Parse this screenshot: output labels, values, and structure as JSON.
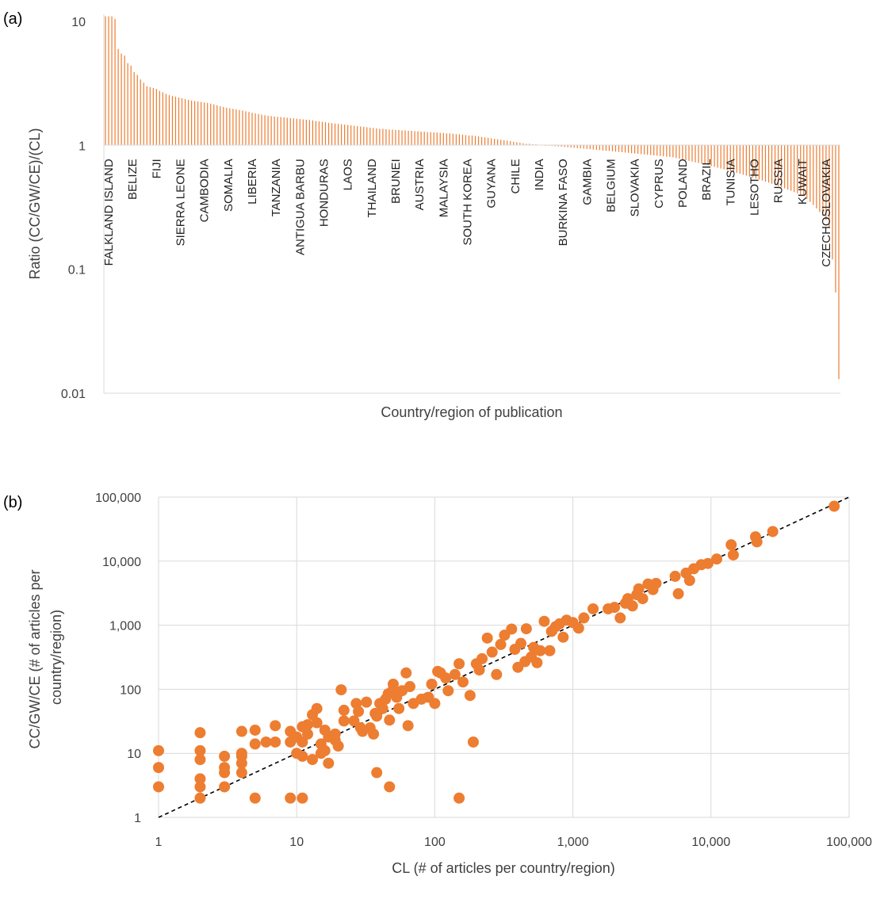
{
  "chart_data": [
    {
      "panel_label": "(a)",
      "type": "bar",
      "title": "",
      "xlabel": "Country/region of publication",
      "ylabel": "Ratio (CC/GW/CE)/(CL)",
      "yscale": "log",
      "ylim": [
        0.01,
        10
      ],
      "baseline": 1,
      "yticks": [
        "0.01",
        "0.1",
        "1",
        "10"
      ],
      "grid": false,
      "bar_color": "#ED7D31",
      "tick_categories": [
        "FALKLAND ISLAND",
        "BELIZE",
        "FIJI",
        "SIERRA LEONE",
        "CAMBODIA",
        "SOMALIA",
        "LIBERIA",
        "TANZANIA",
        "ANTIGUA BARBU",
        "HONDURAS",
        "LAOS",
        "THAILAND",
        "BRUNEI",
        "AUSTRIA",
        "MALAYSIA",
        "SOUTH KOREA",
        "GUYANA",
        "CHILE",
        "INDIA",
        "BURKINA FASO",
        "GAMBIA",
        "BELGIUM",
        "SLOVAKIA",
        "CYPRUS",
        "POLAND",
        "BRAZIL",
        "TUNISIA",
        "LESOTHO",
        "RUSSIA",
        "KUWAIT",
        "CZECHOSLOVAKIA"
      ],
      "values": [
        11,
        11,
        11,
        10.5,
        6,
        5.5,
        5.3,
        4.6,
        4.4,
        3.9,
        3.7,
        3.4,
        3.2,
        3.0,
        2.95,
        2.9,
        2.85,
        2.75,
        2.68,
        2.6,
        2.54,
        2.5,
        2.47,
        2.43,
        2.4,
        2.36,
        2.33,
        2.3,
        2.28,
        2.26,
        2.24,
        2.22,
        2.2,
        2.17,
        2.14,
        2.1,
        2.07,
        2.04,
        2.01,
        1.99,
        1.97,
        1.95,
        1.93,
        1.91,
        1.88,
        1.86,
        1.83,
        1.81,
        1.79,
        1.77,
        1.75,
        1.73,
        1.72,
        1.71,
        1.7,
        1.69,
        1.68,
        1.67,
        1.66,
        1.65,
        1.64,
        1.63,
        1.62,
        1.61,
        1.6,
        1.59,
        1.57,
        1.56,
        1.55,
        1.54,
        1.52,
        1.51,
        1.5,
        1.49,
        1.48,
        1.47,
        1.46,
        1.45,
        1.44,
        1.43,
        1.42,
        1.41,
        1.4,
        1.39,
        1.38,
        1.37,
        1.36,
        1.36,
        1.35,
        1.34,
        1.34,
        1.33,
        1.33,
        1.32,
        1.32,
        1.31,
        1.31,
        1.3,
        1.3,
        1.29,
        1.29,
        1.28,
        1.28,
        1.27,
        1.27,
        1.26,
        1.26,
        1.25,
        1.25,
        1.24,
        1.23,
        1.23,
        1.22,
        1.21,
        1.2,
        1.2,
        1.19,
        1.18,
        1.17,
        1.16,
        1.15,
        1.14,
        1.13,
        1.12,
        1.11,
        1.1,
        1.09,
        1.08,
        1.07,
        1.06,
        1.05,
        1.04,
        1.03,
        1.03,
        1.02,
        1.02,
        1.01,
        1.01,
        1.0,
        0.995,
        0.99,
        0.985,
        0.98,
        0.975,
        0.97,
        0.965,
        0.96,
        0.955,
        0.95,
        0.945,
        0.94,
        0.935,
        0.93,
        0.925,
        0.92,
        0.915,
        0.91,
        0.905,
        0.9,
        0.895,
        0.89,
        0.885,
        0.88,
        0.875,
        0.87,
        0.865,
        0.86,
        0.855,
        0.85,
        0.845,
        0.84,
        0.835,
        0.83,
        0.825,
        0.82,
        0.815,
        0.81,
        0.805,
        0.8,
        0.79,
        0.78,
        0.77,
        0.76,
        0.75,
        0.74,
        0.73,
        0.72,
        0.71,
        0.7,
        0.69,
        0.68,
        0.67,
        0.66,
        0.65,
        0.64,
        0.63,
        0.62,
        0.61,
        0.6,
        0.59,
        0.58,
        0.57,
        0.56,
        0.55,
        0.54,
        0.53,
        0.52,
        0.51,
        0.5,
        0.49,
        0.48,
        0.47,
        0.46,
        0.45,
        0.44,
        0.43,
        0.42,
        0.41,
        0.4,
        0.39,
        0.37,
        0.35,
        0.33,
        0.31,
        0.29,
        0.27,
        0.25,
        0.22,
        0.12,
        0.065,
        0.013
      ]
    },
    {
      "panel_label": "(b)",
      "type": "scatter",
      "title": "",
      "xlabel": "CL (# of articles per country/region)",
      "ylabel": "CC/GW/CE (# of articles per country/region)",
      "xscale": "log",
      "yscale": "log",
      "xlim": [
        1,
        100000
      ],
      "ylim": [
        1,
        100000
      ],
      "xticks": [
        "1",
        "10",
        "100",
        "1,000",
        "10,000",
        "100,000"
      ],
      "yticks": [
        "1",
        "10",
        "100",
        "1,000",
        "10,000",
        "100,000"
      ],
      "grid": true,
      "point_color": "#ED7D31",
      "reference_line": "y = x (dashed)",
      "points": [
        [
          1,
          11
        ],
        [
          1,
          6
        ],
        [
          1,
          3
        ],
        [
          2,
          21
        ],
        [
          2,
          11
        ],
        [
          2,
          8
        ],
        [
          2,
          4
        ],
        [
          2,
          3
        ],
        [
          2,
          2
        ],
        [
          3,
          9
        ],
        [
          3,
          6
        ],
        [
          3,
          5
        ],
        [
          3,
          3
        ],
        [
          4,
          22
        ],
        [
          4,
          10
        ],
        [
          4,
          9
        ],
        [
          4,
          7
        ],
        [
          4,
          5
        ],
        [
          5,
          23
        ],
        [
          5,
          14
        ],
        [
          5,
          2
        ],
        [
          6,
          15
        ],
        [
          7,
          27
        ],
        [
          7,
          15
        ],
        [
          9,
          22
        ],
        [
          9,
          15
        ],
        [
          9,
          2
        ],
        [
          10,
          18
        ],
        [
          10,
          10
        ],
        [
          11,
          26
        ],
        [
          11,
          15
        ],
        [
          11,
          9
        ],
        [
          11,
          2
        ],
        [
          12,
          28
        ],
        [
          12,
          20
        ],
        [
          13,
          40
        ],
        [
          13,
          8
        ],
        [
          14,
          50
        ],
        [
          14,
          30
        ],
        [
          15,
          14
        ],
        [
          15,
          10
        ],
        [
          16,
          23
        ],
        [
          16,
          11
        ],
        [
          17,
          18
        ],
        [
          17,
          7
        ],
        [
          19,
          20
        ],
        [
          19,
          16
        ],
        [
          20,
          13
        ],
        [
          21,
          98
        ],
        [
          22,
          47
        ],
        [
          22,
          32
        ],
        [
          26,
          32
        ],
        [
          27,
          60
        ],
        [
          28,
          45
        ],
        [
          29,
          25
        ],
        [
          30,
          22
        ],
        [
          32,
          63
        ],
        [
          34,
          25
        ],
        [
          36,
          20
        ],
        [
          37,
          42
        ],
        [
          38,
          38
        ],
        [
          38,
          5
        ],
        [
          40,
          60
        ],
        [
          42,
          50
        ],
        [
          44,
          70
        ],
        [
          46,
          85
        ],
        [
          47,
          33
        ],
        [
          47,
          3
        ],
        [
          50,
          100
        ],
        [
          50,
          120
        ],
        [
          53,
          75
        ],
        [
          55,
          50
        ],
        [
          58,
          95
        ],
        [
          62,
          180
        ],
        [
          64,
          27
        ],
        [
          66,
          110
        ],
        [
          70,
          60
        ],
        [
          80,
          70
        ],
        [
          90,
          75
        ],
        [
          95,
          120
        ],
        [
          100,
          60
        ],
        [
          105,
          190
        ],
        [
          110,
          180
        ],
        [
          120,
          150
        ],
        [
          125,
          95
        ],
        [
          140,
          170
        ],
        [
          150,
          250
        ],
        [
          150,
          2
        ],
        [
          160,
          130
        ],
        [
          180,
          80
        ],
        [
          190,
          15
        ],
        [
          200,
          250
        ],
        [
          210,
          200
        ],
        [
          220,
          300
        ],
        [
          240,
          630
        ],
        [
          260,
          380
        ],
        [
          280,
          170
        ],
        [
          300,
          500
        ],
        [
          320,
          700
        ],
        [
          360,
          870
        ],
        [
          380,
          420
        ],
        [
          400,
          220
        ],
        [
          420,
          520
        ],
        [
          450,
          270
        ],
        [
          460,
          880
        ],
        [
          500,
          320
        ],
        [
          520,
          450
        ],
        [
          550,
          260
        ],
        [
          580,
          400
        ],
        [
          620,
          1150
        ],
        [
          680,
          400
        ],
        [
          700,
          800
        ],
        [
          750,
          950
        ],
        [
          800,
          1050
        ],
        [
          850,
          650
        ],
        [
          900,
          1200
        ],
        [
          1000,
          1100
        ],
        [
          1100,
          900
        ],
        [
          1200,
          1300
        ],
        [
          1400,
          1800
        ],
        [
          1800,
          1800
        ],
        [
          2000,
          1900
        ],
        [
          2200,
          1300
        ],
        [
          2400,
          2200
        ],
        [
          2500,
          2600
        ],
        [
          2700,
          2000
        ],
        [
          2900,
          3000
        ],
        [
          3000,
          3700
        ],
        [
          3200,
          2600
        ],
        [
          3500,
          4400
        ],
        [
          3800,
          3600
        ],
        [
          4000,
          4500
        ],
        [
          5500,
          5800
        ],
        [
          5800,
          3100
        ],
        [
          6600,
          6500
        ],
        [
          7000,
          5000
        ],
        [
          7500,
          7600
        ],
        [
          8500,
          8800
        ],
        [
          9500,
          9200
        ],
        [
          11000,
          10800
        ],
        [
          14000,
          18000
        ],
        [
          14500,
          12500
        ],
        [
          21000,
          24000
        ],
        [
          21500,
          20000
        ],
        [
          28000,
          29000
        ],
        [
          78000,
          72000
        ]
      ]
    }
  ]
}
